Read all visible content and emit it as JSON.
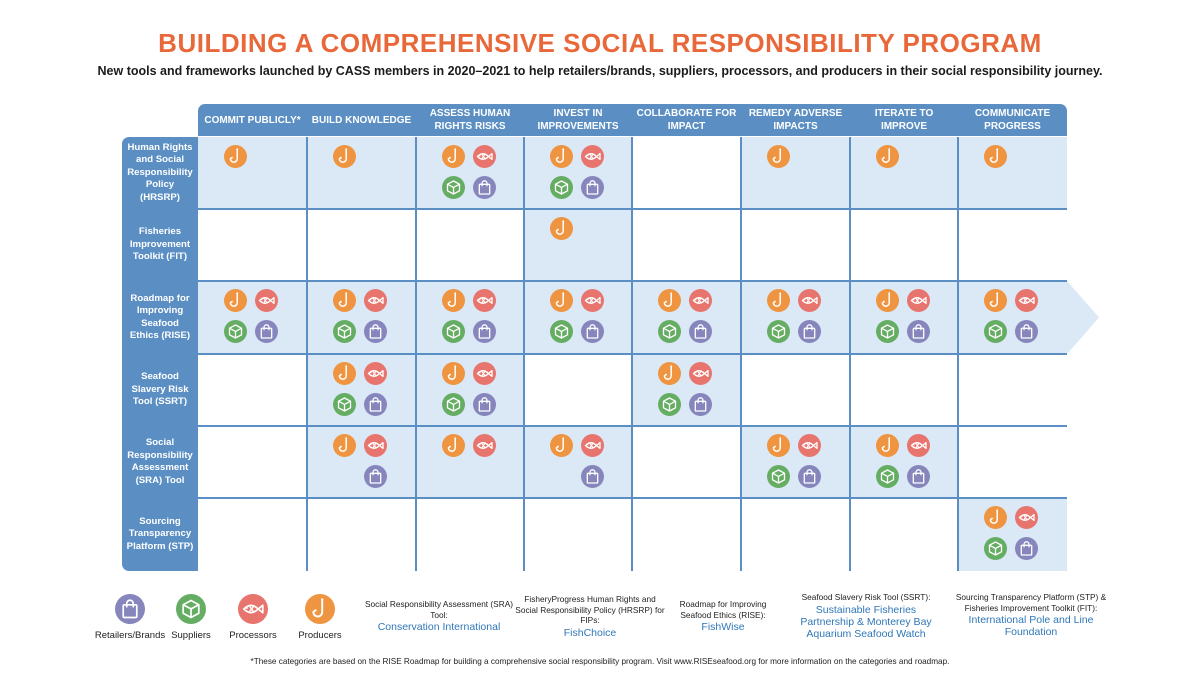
{
  "title": "BUILDING A COMPREHENSIVE SOCIAL RESPONSIBILITY PROGRAM",
  "subtitle": "New tools and frameworks launched by CASS members in 2020–2021 to help retailers/brands, suppliers, processors, and producers in their social responsibility journey.",
  "columns": [
    "COMMIT PUBLICLY*",
    "BUILD KNOWLEDGE",
    "ASSESS HUMAN RIGHTS RISKS",
    "INVEST IN IMPROVEMENTS",
    "COLLABORATE FOR IMPACT",
    "REMEDY ADVERSE IMPACTS",
    "ITERATE TO IMPROVE",
    "COMMUNICATE PROGRESS"
  ],
  "rows": [
    {
      "name": "Human Rights and Social Responsibility Policy (HRSRP)",
      "cells": [
        [
          "producer"
        ],
        [
          "producer"
        ],
        [
          "producer",
          "processor",
          "supplier",
          "retailer"
        ],
        [
          "producer",
          "processor",
          "supplier",
          "retailer"
        ],
        [],
        [
          "producer"
        ],
        [
          "producer"
        ],
        [
          "producer"
        ]
      ]
    },
    {
      "name": "Fisheries Improvement Toolkit (FIT)",
      "cells": [
        [],
        [],
        [],
        [
          "producer"
        ],
        [],
        [],
        [],
        []
      ]
    },
    {
      "name": "Roadmap for Improving Seafood Ethics (RISE)",
      "cells": [
        [
          "producer",
          "processor",
          "supplier",
          "retailer"
        ],
        [
          "producer",
          "processor",
          "supplier",
          "retailer"
        ],
        [
          "producer",
          "processor",
          "supplier",
          "retailer"
        ],
        [
          "producer",
          "processor",
          "supplier",
          "retailer"
        ],
        [
          "producer",
          "processor",
          "supplier",
          "retailer"
        ],
        [
          "producer",
          "processor",
          "supplier",
          "retailer"
        ],
        [
          "producer",
          "processor",
          "supplier",
          "retailer"
        ],
        [
          "producer",
          "processor",
          "supplier",
          "retailer"
        ]
      ]
    },
    {
      "name": "Seafood Slavery Risk Tool (SSRT)",
      "cells": [
        [],
        [
          "producer",
          "processor",
          "supplier",
          "retailer"
        ],
        [
          "producer",
          "processor",
          "supplier",
          "retailer"
        ],
        [],
        [
          "producer",
          "processor",
          "supplier",
          "retailer"
        ],
        [],
        [],
        []
      ]
    },
    {
      "name": "Social Responsibility Assessment (SRA) Tool",
      "cells": [
        [],
        [
          "producer",
          "processor",
          "retailer"
        ],
        [
          "producer",
          "processor"
        ],
        [
          "producer",
          "processor",
          "retailer"
        ],
        [],
        [
          "producer",
          "processor",
          "supplier",
          "retailer"
        ],
        [
          "producer",
          "processor",
          "supplier",
          "retailer"
        ],
        []
      ]
    },
    {
      "name": "Sourcing Transparency Platform (STP)",
      "cells": [
        [],
        [],
        [],
        [],
        [],
        [],
        [],
        [
          "producer",
          "processor",
          "supplier",
          "retailer"
        ]
      ]
    }
  ],
  "legend": [
    {
      "icon": "retailer",
      "label": "Retailers/Brands"
    },
    {
      "icon": "supplier",
      "label": "Suppliers"
    },
    {
      "icon": "processor",
      "label": "Processors"
    },
    {
      "icon": "producer",
      "label": "Producers"
    }
  ],
  "sources": [
    {
      "desc": "Social Responsibility Assessment (SRA) Tool:",
      "org": "Conservation International"
    },
    {
      "desc": "FisheryProgress Human Rights and Social Responsibility Policy (HRSRP) for FIPs:",
      "org": "FishChoice"
    },
    {
      "desc": "Roadmap for Improving Seafood Ethics (RISE):",
      "org": "FishWise"
    },
    {
      "desc": "Seafood Slavery Risk Tool (SSRT):",
      "org": "Sustainable Fisheries Partnership & Monterey Bay Aquarium Seafood Watch"
    },
    {
      "desc": "Sourcing Transparency Platform (STP) & Fisheries Improvement Toolkit (FIT):",
      "org": "International Pole and Line Foundation"
    }
  ],
  "footnote": "*These categories are based on the RISE Roadmap for building a comprehensive social responsibility program. Visit www.RISEseafood.org for more information on the categories and roadmap.",
  "colors": {
    "title": "#e8683a",
    "header": "#5b8fc4",
    "cell_fill": "#dbe9f6",
    "producer": "#ef9440",
    "processor": "#e8746e",
    "supplier": "#66ad64",
    "retailer": "#8686bd",
    "org_link": "#2f77b8"
  }
}
